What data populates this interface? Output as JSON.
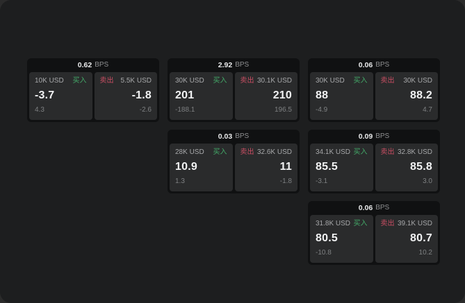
{
  "labels": {
    "bps_unit": "BPS",
    "buy": "买入",
    "sell": "卖出"
  },
  "colors": {
    "buy": "#43a968",
    "sell": "#c94e63",
    "window_bg": "#1d1e1f",
    "card_bg": "#101112",
    "panel_bg": "#2a2b2c"
  },
  "cards": [
    {
      "column": 1,
      "row": 1,
      "bps": "0.62",
      "buy": {
        "amount": "10K USD",
        "price": "-3.7",
        "delta": "4.3"
      },
      "sell": {
        "amount": "5.5K USD",
        "price": "-1.8",
        "delta": "-2.6"
      }
    },
    {
      "column": 2,
      "row": 1,
      "bps": "2.92",
      "buy": {
        "amount": "30K USD",
        "price": "201",
        "delta": "-188.1"
      },
      "sell": {
        "amount": "30.1K USD",
        "price": "210",
        "delta": "196.5"
      }
    },
    {
      "column": 3,
      "row": 1,
      "bps": "0.06",
      "buy": {
        "amount": "30K USD",
        "price": "88",
        "delta": "-4.9"
      },
      "sell": {
        "amount": "30K USD",
        "price": "88.2",
        "delta": "4.7"
      }
    },
    {
      "column": 2,
      "row": 2,
      "bps": "0.03",
      "buy": {
        "amount": "28K USD",
        "price": "10.9",
        "delta": "1.3"
      },
      "sell": {
        "amount": "32.6K USD",
        "price": "11",
        "delta": "-1.8"
      }
    },
    {
      "column": 3,
      "row": 2,
      "bps": "0.09",
      "buy": {
        "amount": "34.1K USD",
        "price": "85.5",
        "delta": "-3.1"
      },
      "sell": {
        "amount": "32.8K USD",
        "price": "85.8",
        "delta": "3.0"
      }
    },
    {
      "column": 3,
      "row": 3,
      "bps": "0.06",
      "buy": {
        "amount": "31.8K USD",
        "price": "80.5",
        "delta": "-10.8"
      },
      "sell": {
        "amount": "39.1K USD",
        "price": "80.7",
        "delta": "10.2"
      }
    }
  ]
}
